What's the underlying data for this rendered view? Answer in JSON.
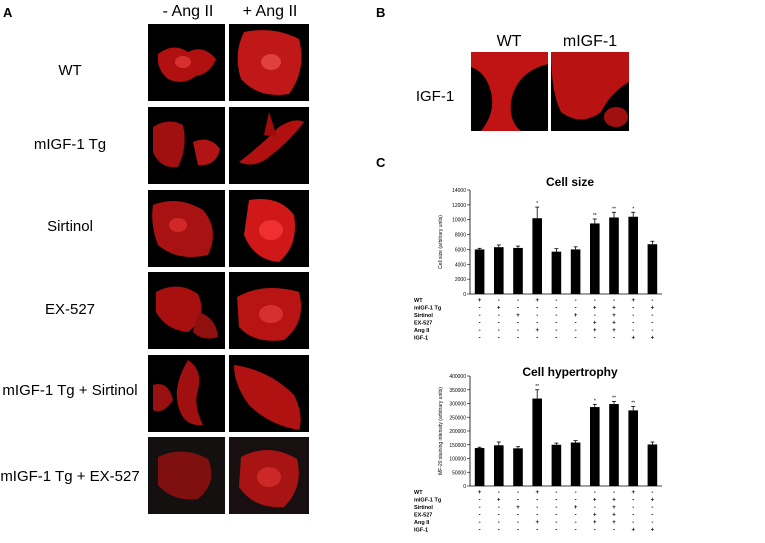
{
  "panelA": {
    "letter": "A",
    "columns": [
      "- Ang II",
      "+ Ang II"
    ],
    "rows": [
      "WT",
      "mIGF-1 Tg",
      "Sirtinol",
      "EX-527",
      "mIGF-1 Tg + Sirtinol",
      "mIGF-1 Tg + EX-527"
    ]
  },
  "panelB": {
    "letter": "B",
    "columns": [
      "WT",
      "mIGF-1"
    ],
    "row": "IGF-1"
  },
  "panelC": {
    "letter": "C",
    "colors": {
      "bar": "#000000",
      "stain": "#d01010"
    }
  },
  "chart_data": [
    {
      "type": "bar",
      "title": "Cell size",
      "ylabel": "Cell size (arbitrary units)",
      "ylim": [
        0,
        14000
      ],
      "yticks": [
        "0",
        "2000",
        "4000",
        "6000",
        "8000",
        "10000",
        "12000",
        "14000"
      ],
      "values": [
        6000,
        6300,
        6200,
        10200,
        5700,
        6000,
        9500,
        10300,
        10400,
        6700
      ],
      "errors": [
        150,
        300,
        250,
        1500,
        400,
        350,
        600,
        700,
        600,
        400
      ],
      "significance": [
        "",
        "",
        "",
        "*",
        "",
        "",
        "**",
        "**",
        "*",
        ""
      ],
      "legend_rows": [
        {
          "label": "WT",
          "signs": [
            "+",
            "-",
            "-",
            "+",
            "-",
            "-",
            "-",
            "-",
            "+",
            "-"
          ]
        },
        {
          "label": "mIGF-1 Tg",
          "signs": [
            "-",
            "+",
            "-",
            "-",
            "-",
            "-",
            "+",
            "+",
            "-",
            "+"
          ]
        },
        {
          "label": "Sirtinol",
          "signs": [
            "-",
            "-",
            "+",
            "-",
            "-",
            "+",
            "-",
            "+",
            "-",
            "-"
          ]
        },
        {
          "label": "EX-527",
          "signs": [
            "-",
            "-",
            "-",
            "-",
            "-",
            "-",
            "+",
            "+",
            "-",
            "-"
          ]
        },
        {
          "label": "Ang II",
          "signs": [
            "-",
            "-",
            "-",
            "+",
            "-",
            "-",
            "+",
            "+",
            "-",
            "-"
          ]
        },
        {
          "label": "IGF-1",
          "signs": [
            "-",
            "-",
            "-",
            "-",
            "-",
            "-",
            "-",
            "-",
            "+",
            "+"
          ]
        }
      ]
    },
    {
      "type": "bar",
      "title": "Cell hypertrophy",
      "ylabel": "MF-20 staining intensity (arbitrary units)",
      "ylim": [
        0,
        400000
      ],
      "yticks": [
        "0",
        "50000",
        "100000",
        "150000",
        "200000",
        "250000",
        "300000",
        "350000",
        "400000"
      ],
      "values": [
        138000,
        148000,
        137000,
        318000,
        150000,
        158000,
        287000,
        298000,
        275000,
        151000
      ],
      "errors": [
        3000,
        12000,
        6000,
        32000,
        6000,
        7000,
        10000,
        9000,
        14000,
        9000
      ],
      "significance": [
        "",
        "",
        "",
        "**",
        "",
        "",
        "*",
        "**",
        "**",
        ""
      ],
      "legend_rows": [
        {
          "label": "WT",
          "signs": [
            "+",
            "-",
            "-",
            "+",
            "-",
            "-",
            "-",
            "-",
            "+",
            "-"
          ]
        },
        {
          "label": "mIGF-1 Tg",
          "signs": [
            "-",
            "+",
            "-",
            "-",
            "-",
            "-",
            "+",
            "+",
            "-",
            "+"
          ]
        },
        {
          "label": "Sirtinol",
          "signs": [
            "-",
            "-",
            "+",
            "-",
            "-",
            "+",
            "-",
            "+",
            "-",
            "-"
          ]
        },
        {
          "label": "EX-527",
          "signs": [
            "-",
            "-",
            "-",
            "-",
            "-",
            "-",
            "+",
            "+",
            "-",
            "-"
          ]
        },
        {
          "label": "Ang II",
          "signs": [
            "-",
            "-",
            "-",
            "+",
            "-",
            "-",
            "+",
            "+",
            "-",
            "-"
          ]
        },
        {
          "label": "IGF-1",
          "signs": [
            "-",
            "-",
            "-",
            "-",
            "-",
            "-",
            "-",
            "-",
            "+",
            "+"
          ]
        }
      ]
    }
  ]
}
